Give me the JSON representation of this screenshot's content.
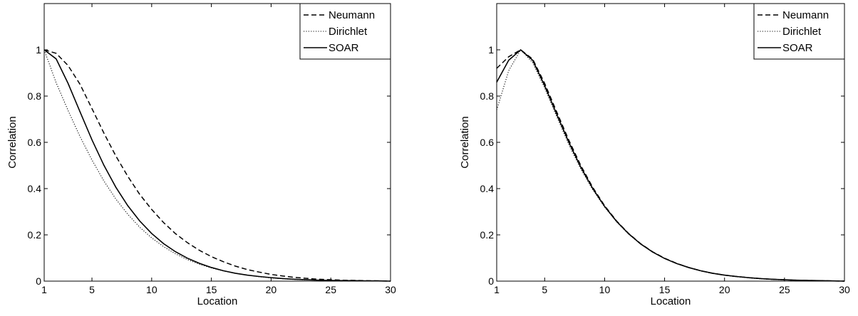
{
  "chart_data": [
    {
      "type": "line",
      "xlabel": "Location",
      "ylabel": "Correlation",
      "xlim": [
        1,
        30
      ],
      "ylim": [
        0,
        1.2
      ],
      "xticks": [
        1,
        5,
        10,
        15,
        20,
        25,
        30
      ],
      "yticks": [
        0,
        0.2,
        0.4,
        0.6,
        0.8,
        1
      ],
      "legend": "top-right",
      "grid": false,
      "x": [
        1,
        2,
        3,
        4,
        5,
        6,
        7,
        8,
        9,
        10,
        11,
        12,
        13,
        14,
        15,
        16,
        17,
        18,
        19,
        20,
        21,
        22,
        23,
        24,
        25,
        26,
        27,
        28,
        29,
        30
      ],
      "series": [
        {
          "name": "Neumann",
          "style": "dashed",
          "values": [
            1,
            0.985,
            0.932,
            0.851,
            0.746,
            0.64,
            0.541,
            0.453,
            0.375,
            0.31,
            0.253,
            0.205,
            0.166,
            0.133,
            0.106,
            0.084,
            0.065,
            0.05,
            0.039,
            0.029,
            0.022,
            0.016,
            0.012,
            0.008,
            0.006,
            0.004,
            0.003,
            0.002,
            0.001,
            0.0
          ]
        },
        {
          "name": "Dirichlet",
          "style": "dotted",
          "values": [
            1,
            0.858,
            0.738,
            0.625,
            0.524,
            0.433,
            0.355,
            0.289,
            0.233,
            0.187,
            0.149,
            0.118,
            0.093,
            0.073,
            0.057,
            0.044,
            0.034,
            0.026,
            0.019,
            0.014,
            0.01,
            0.007,
            0.005,
            0.004,
            0.003,
            0.002,
            0.001,
            0.001,
            0.0,
            0.0
          ]
        },
        {
          "name": "SOAR",
          "style": "solid",
          "values": [
            1,
            0.961,
            0.855,
            0.732,
            0.611,
            0.501,
            0.406,
            0.326,
            0.26,
            0.206,
            0.162,
            0.127,
            0.099,
            0.077,
            0.059,
            0.045,
            0.034,
            0.026,
            0.02,
            0.015,
            0.011,
            0.008,
            0.006,
            0.004,
            0.003,
            0.002,
            0.002,
            0.001,
            0.001,
            0.0
          ]
        }
      ]
    },
    {
      "type": "line",
      "xlabel": "Location",
      "ylabel": "Correlation",
      "xlim": [
        1,
        30
      ],
      "ylim": [
        0,
        1.2
      ],
      "xticks": [
        1,
        5,
        10,
        15,
        20,
        25,
        30
      ],
      "yticks": [
        0,
        0.2,
        0.4,
        0.6,
        0.8,
        1
      ],
      "legend": "top-right",
      "grid": false,
      "x": [
        1,
        2,
        3,
        4,
        5,
        6,
        7,
        8,
        9,
        10,
        11,
        12,
        13,
        14,
        15,
        16,
        17,
        18,
        19,
        20,
        21,
        22,
        23,
        24,
        25,
        26,
        27,
        28,
        29,
        30
      ],
      "series": [
        {
          "name": "Neumann",
          "style": "dashed",
          "values": [
            0.92,
            0.97,
            1.0,
            0.96,
            0.855,
            0.732,
            0.611,
            0.501,
            0.406,
            0.326,
            0.26,
            0.206,
            0.162,
            0.127,
            0.099,
            0.077,
            0.059,
            0.045,
            0.034,
            0.026,
            0.02,
            0.015,
            0.011,
            0.008,
            0.006,
            0.004,
            0.003,
            0.002,
            0.001,
            0.0
          ]
        },
        {
          "name": "Dirichlet",
          "style": "dotted",
          "values": [
            0.74,
            0.91,
            1.0,
            0.945,
            0.835,
            0.712,
            0.592,
            0.486,
            0.396,
            0.32,
            0.256,
            0.203,
            0.16,
            0.125,
            0.098,
            0.076,
            0.058,
            0.044,
            0.033,
            0.025,
            0.019,
            0.014,
            0.01,
            0.007,
            0.005,
            0.004,
            0.003,
            0.002,
            0.001,
            0.0
          ]
        },
        {
          "name": "SOAR",
          "style": "solid",
          "values": [
            0.86,
            0.955,
            1.0,
            0.955,
            0.845,
            0.722,
            0.602,
            0.494,
            0.401,
            0.323,
            0.258,
            0.205,
            0.161,
            0.126,
            0.098,
            0.076,
            0.059,
            0.045,
            0.034,
            0.026,
            0.02,
            0.015,
            0.011,
            0.008,
            0.006,
            0.004,
            0.003,
            0.002,
            0.001,
            0.0
          ]
        }
      ]
    }
  ]
}
